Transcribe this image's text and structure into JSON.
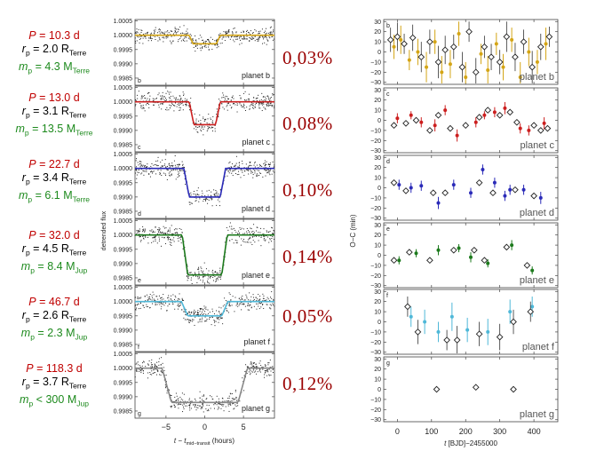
{
  "planets": [
    {
      "panel": "b",
      "name": "planet b",
      "P": "10.3 d",
      "rp": "2.0",
      "mp_rel": "=",
      "mp": "4.3",
      "mp_unit": "Terre",
      "depth": "0,03%",
      "color": "#d4a516"
    },
    {
      "panel": "c",
      "name": "planet c",
      "P": "13.0 d",
      "rp": "3.1",
      "mp_rel": "=",
      "mp": "13.5",
      "mp_unit": "Terre",
      "depth": "0,08%",
      "color": "#cc1f1f"
    },
    {
      "panel": "d",
      "name": "planet d",
      "P": "22.7 d",
      "rp": "3.4",
      "mp_rel": "=",
      "mp": "6.1",
      "mp_unit": "Terre",
      "depth": "0,10%",
      "color": "#2a2ab8"
    },
    {
      "panel": "e",
      "name": "planet e",
      "P": "32.0 d",
      "rp": "4.5",
      "mp_rel": "=",
      "mp": "8.4",
      "mp_unit": "Jup",
      "depth": "0,14%",
      "color": "#1d7a1d"
    },
    {
      "panel": "f",
      "name": "planet f",
      "P": "46.7 d",
      "rp": "2.6",
      "mp_rel": "=",
      "mp": "2.3",
      "mp_unit": "Jup",
      "depth": "0,05%",
      "color": "#4fb8d8"
    },
    {
      "panel": "g",
      "name": "planet g",
      "P": "118.3 d",
      "rp": "3.7",
      "mp_rel": "<",
      "mp": "300",
      "mp_unit": "Jup",
      "depth": "0,12%",
      "color": "#888888"
    }
  ],
  "labels": {
    "P": "P",
    "r": "r",
    "m": "m",
    "sub_p": "p",
    "eq": "=",
    "R": "R",
    "M": "M",
    "percent_sign": "%"
  },
  "chart_data": [
    {
      "type": "line",
      "panels": [
        "b",
        "c",
        "d",
        "e",
        "f",
        "g"
      ],
      "ylabel": "detrended flux",
      "xlabel_prefix": "t − t",
      "xlabel_sub": "mid−transit",
      "xlabel_suffix": "(hours)",
      "xlim": [
        -9,
        9
      ],
      "ylim": [
        0.9984,
        1.0006
      ],
      "xticks": [
        "−5",
        "0",
        "5"
      ],
      "xtick_values": [
        -5,
        0,
        5
      ],
      "yticks": [
        "1.0005",
        "1.0000",
        "0.9995",
        "0.9990",
        "0.9985"
      ],
      "ytick_values": [
        1.0005,
        1.0,
        0.9995,
        0.999,
        0.9985
      ],
      "series": [
        {
          "name": "planet b",
          "depth": 0.0003,
          "half_duration": 2.0,
          "ingress": 0.5
        },
        {
          "name": "planet c",
          "depth": 0.0008,
          "half_duration": 2.0,
          "ingress": 0.6
        },
        {
          "name": "planet d",
          "depth": 0.001,
          "half_duration": 2.7,
          "ingress": 0.7
        },
        {
          "name": "planet e",
          "depth": 0.0014,
          "half_duration": 2.9,
          "ingress": 0.7
        },
        {
          "name": "planet f",
          "depth": 0.0005,
          "half_duration": 3.0,
          "ingress": 0.8
        },
        {
          "name": "planet g",
          "depth": 0.0012,
          "half_duration": 5.5,
          "ingress": 1.2
        }
      ]
    },
    {
      "type": "scatter",
      "panels": [
        "b",
        "c",
        "d",
        "e",
        "f",
        "g"
      ],
      "ylabel": "O−C (min)",
      "xlabel_prefix": "t",
      "xlabel_suffix": "[BJD]−2455000",
      "xlim": [
        -40,
        470
      ],
      "ylim": [
        -32,
        32
      ],
      "xticks": [
        "0",
        "100",
        "200",
        "300",
        "400"
      ],
      "xtick_values": [
        0,
        100,
        200,
        300,
        400
      ],
      "yticks": [
        "30",
        "20",
        "10",
        "0",
        "−10",
        "−20",
        "−30"
      ],
      "ytick_values": [
        30,
        20,
        10,
        0,
        -10,
        -20,
        -30
      ],
      "series": [
        {
          "name": "planet b",
          "diamonds": [
            [
              -20,
              12
            ],
            [
              0,
              15
            ],
            [
              20,
              8
            ],
            [
              45,
              14
            ],
            [
              70,
              -5
            ],
            [
              95,
              10
            ],
            [
              120,
              -10
            ],
            [
              140,
              2
            ],
            [
              165,
              5
            ],
            [
              190,
              -15
            ],
            [
              210,
              20
            ],
            [
              230,
              -20
            ],
            [
              255,
              5
            ],
            [
              275,
              -5
            ],
            [
              300,
              -10
            ],
            [
              320,
              15
            ],
            [
              345,
              -5
            ],
            [
              370,
              10
            ],
            [
              395,
              -15
            ],
            [
              420,
              5
            ],
            [
              445,
              15
            ]
          ],
          "points": [
            [
              -10,
              5
            ],
            [
              10,
              12
            ],
            [
              35,
              -8
            ],
            [
              60,
              0
            ],
            [
              85,
              -15
            ],
            [
              110,
              10
            ],
            [
              130,
              -20
            ],
            [
              155,
              -12
            ],
            [
              180,
              18
            ],
            [
              200,
              -25
            ],
            [
              245,
              -2
            ],
            [
              265,
              -18
            ],
            [
              290,
              8
            ],
            [
              310,
              -15
            ],
            [
              335,
              12
            ],
            [
              360,
              -25
            ],
            [
              385,
              0
            ],
            [
              410,
              -10
            ],
            [
              435,
              8
            ]
          ],
          "errors": [
            12,
            14,
            10,
            13,
            15,
            12,
            16,
            14,
            12,
            15,
            10,
            14,
            11,
            13,
            12,
            15,
            14,
            12,
            16,
            13,
            10
          ]
        },
        {
          "name": "planet c",
          "diamonds": [
            [
              -10,
              -5
            ],
            [
              25,
              -3
            ],
            [
              55,
              0
            ],
            [
              95,
              -10
            ],
            [
              120,
              5
            ],
            [
              155,
              -8
            ],
            [
              200,
              -5
            ],
            [
              240,
              3
            ],
            [
              265,
              10
            ],
            [
              300,
              5
            ],
            [
              330,
              8
            ],
            [
              350,
              -2
            ],
            [
              400,
              -5
            ],
            [
              420,
              -10
            ],
            [
              440,
              -8
            ]
          ],
          "points": [
            [
              0,
              2
            ],
            [
              40,
              5
            ],
            [
              70,
              -2
            ],
            [
              110,
              -5
            ],
            [
              140,
              10
            ],
            [
              175,
              -15
            ],
            [
              230,
              -2
            ],
            [
              255,
              5
            ],
            [
              285,
              8
            ],
            [
              315,
              12
            ],
            [
              360,
              -8
            ],
            [
              385,
              -10
            ],
            [
              430,
              -3
            ]
          ],
          "errors": [
            5,
            4,
            5,
            6,
            5,
            6,
            5,
            4,
            5,
            6,
            5,
            5,
            6,
            5,
            5
          ]
        },
        {
          "name": "planet d",
          "diamonds": [
            [
              -10,
              5
            ],
            [
              25,
              -3
            ],
            [
              105,
              -5
            ],
            [
              140,
              -5
            ],
            [
              240,
              5
            ],
            [
              280,
              -5
            ],
            [
              345,
              -2
            ],
            [
              400,
              -8
            ]
          ],
          "points": [
            [
              5,
              3
            ],
            [
              40,
              0
            ],
            [
              70,
              2
            ],
            [
              120,
              -15
            ],
            [
              165,
              3
            ],
            [
              215,
              -5
            ],
            [
              250,
              18
            ],
            [
              285,
              5
            ],
            [
              315,
              -8
            ],
            [
              330,
              -2
            ],
            [
              370,
              -2
            ],
            [
              420,
              -10
            ]
          ],
          "errors": [
            5,
            5,
            5,
            6,
            5,
            5,
            5,
            5
          ]
        },
        {
          "name": "planet e",
          "diamonds": [
            [
              -10,
              -5
            ],
            [
              35,
              3
            ],
            [
              95,
              -5
            ],
            [
              165,
              5
            ],
            [
              225,
              5
            ],
            [
              255,
              -5
            ],
            [
              320,
              8
            ],
            [
              380,
              -10
            ]
          ],
          "points": [
            [
              5,
              -5
            ],
            [
              55,
              2
            ],
            [
              120,
              5
            ],
            [
              180,
              7
            ],
            [
              215,
              -2
            ],
            [
              265,
              -8
            ],
            [
              335,
              10
            ],
            [
              395,
              -15
            ]
          ],
          "errors": [
            4,
            4,
            5,
            4,
            5,
            4,
            5,
            4
          ]
        },
        {
          "name": "planet f",
          "diamonds": [
            [
              30,
              15
            ],
            [
              60,
              -10
            ],
            [
              145,
              -18
            ],
            [
              175,
              -18
            ],
            [
              240,
              -12
            ],
            [
              300,
              -15
            ],
            [
              340,
              0
            ],
            [
              390,
              10
            ]
          ],
          "points": [
            [
              40,
              5
            ],
            [
              80,
              0
            ],
            [
              120,
              -10
            ],
            [
              160,
              5
            ],
            [
              205,
              -8
            ],
            [
              265,
              -10
            ],
            [
              330,
              10
            ],
            [
              395,
              15
            ]
          ],
          "errors": [
            10,
            12,
            10,
            14,
            12,
            13,
            12,
            10
          ]
        },
        {
          "name": "planet g",
          "diamonds": [
            [
              115,
              0
            ],
            [
              230,
              2
            ],
            [
              340,
              0
            ]
          ],
          "points": [],
          "errors": [
            4,
            4,
            4
          ]
        }
      ]
    }
  ]
}
